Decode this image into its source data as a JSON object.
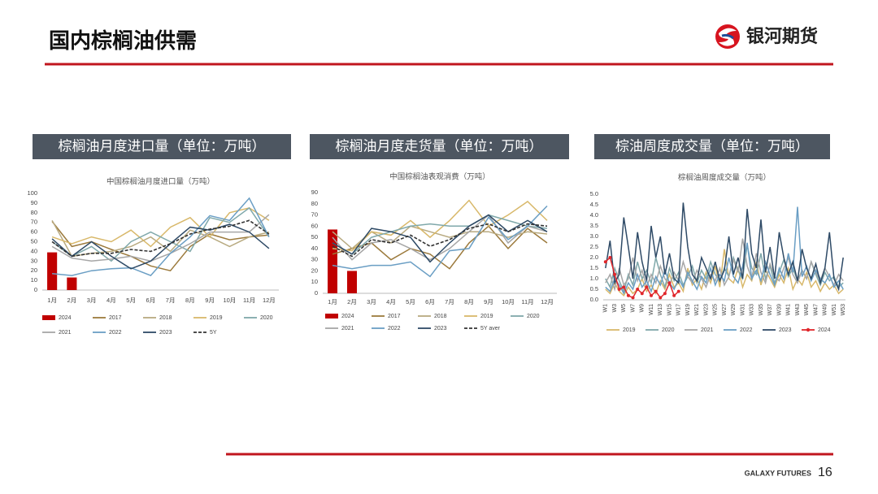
{
  "header": {
    "title": "国内棕榈油供需",
    "logo_text": "银河期货"
  },
  "sections": [
    "棕榈油月度进口量（单位：万吨）",
    "棕榈油月度走货量（单位：万吨）",
    "棕油周度成交量（单位：万吨）"
  ],
  "footer": {
    "brand": "GALAXY FUTURES",
    "page": 16
  },
  "chart_data": [
    {
      "type": "line",
      "title": "中国棕榈油月度进口量（万吨）",
      "categories": [
        "1月",
        "2月",
        "3月",
        "4月",
        "5月",
        "6月",
        "7月",
        "8月",
        "9月",
        "10月",
        "11月",
        "12月"
      ],
      "ylim": [
        0,
        100
      ],
      "yticks": [
        0,
        10,
        20,
        30,
        40,
        50,
        60,
        70,
        80,
        90,
        100
      ],
      "series": [
        {
          "name": "2024",
          "type": "bar",
          "color": "#c00000",
          "values": [
            39,
            13,
            null,
            null,
            null,
            null,
            null,
            null,
            null,
            null,
            null,
            null
          ]
        },
        {
          "name": "2017",
          "color": "#9c7a3c",
          "values": [
            71,
            45,
            50,
            42,
            35,
            25,
            20,
            45,
            58,
            52,
            55,
            57
          ]
        },
        {
          "name": "2018",
          "color": "#b8aa80",
          "values": [
            72,
            35,
            38,
            40,
            45,
            55,
            40,
            62,
            55,
            45,
            55,
            60
          ]
        },
        {
          "name": "2019",
          "color": "#d8b86a",
          "values": [
            55,
            48,
            55,
            50,
            62,
            45,
            65,
            75,
            55,
            80,
            85,
            72
          ]
        },
        {
          "name": "2020",
          "color": "#7fa8aa",
          "values": [
            50,
            35,
            45,
            30,
            50,
            60,
            50,
            40,
            75,
            70,
            85,
            55
          ]
        },
        {
          "name": "2021",
          "color": "#a6a6a6",
          "values": [
            45,
            33,
            30,
            32,
            35,
            30,
            38,
            48,
            60,
            60,
            60,
            78
          ]
        },
        {
          "name": "2022",
          "color": "#6a9ec4",
          "values": [
            17,
            15,
            20,
            22,
            23,
            15,
            38,
            55,
            77,
            72,
            95,
            55
          ]
        },
        {
          "name": "2023",
          "color": "#2e4a66",
          "values": [
            53,
            35,
            50,
            35,
            22,
            30,
            48,
            65,
            62,
            68,
            60,
            43
          ]
        },
        {
          "name": "5Y",
          "color": "#333333",
          "style": "dashed",
          "values": [
            50,
            35,
            38,
            38,
            42,
            40,
            48,
            58,
            63,
            66,
            72,
            58
          ]
        }
      ]
    },
    {
      "type": "line",
      "title": "中国棕榈油表观消费（万吨）",
      "categories": [
        "1月",
        "2月",
        "3月",
        "4月",
        "5月",
        "6月",
        "7月",
        "8月",
        "9月",
        "10月",
        "11月",
        "12月"
      ],
      "ylim": [
        0,
        90
      ],
      "yticks": [
        0,
        10,
        20,
        30,
        40,
        50,
        60,
        70,
        80,
        90
      ],
      "series": [
        {
          "name": "2024",
          "type": "bar",
          "color": "#c00000",
          "values": [
            57,
            20,
            null,
            null,
            null,
            null,
            null,
            null,
            null,
            null,
            null,
            null
          ]
        },
        {
          "name": "2017",
          "color": "#9c7a3c",
          "values": [
            35,
            40,
            45,
            30,
            40,
            35,
            22,
            45,
            60,
            40,
            58,
            45
          ]
        },
        {
          "name": "2018",
          "color": "#b8aa80",
          "values": [
            55,
            40,
            55,
            45,
            60,
            55,
            50,
            55,
            55,
            50,
            55,
            53
          ]
        },
        {
          "name": "2019",
          "color": "#d8b86a",
          "values": [
            40,
            38,
            55,
            52,
            65,
            50,
            65,
            83,
            60,
            70,
            82,
            65
          ]
        },
        {
          "name": "2020",
          "color": "#7fa8aa",
          "values": [
            45,
            35,
            50,
            55,
            60,
            62,
            60,
            60,
            70,
            65,
            60,
            58
          ]
        },
        {
          "name": "2021",
          "color": "#a6a6a6",
          "values": [
            50,
            30,
            45,
            48,
            40,
            30,
            40,
            55,
            70,
            45,
            60,
            55
          ]
        },
        {
          "name": "2022",
          "color": "#6a9ec4",
          "values": [
            25,
            22,
            25,
            25,
            28,
            15,
            38,
            40,
            68,
            48,
            60,
            78
          ]
        },
        {
          "name": "2023",
          "color": "#2e4a66",
          "values": [
            45,
            35,
            58,
            55,
            50,
            28,
            45,
            60,
            70,
            55,
            65,
            55
          ]
        },
        {
          "name": "5Y aver",
          "color": "#333333",
          "style": "dashed",
          "values": [
            42,
            33,
            48,
            45,
            52,
            42,
            48,
            58,
            62,
            55,
            62,
            60
          ]
        }
      ]
    },
    {
      "type": "line",
      "title": "棕榈油周度成交量（万吨）",
      "categories": [
        "W1",
        null,
        "W3",
        null,
        "W5",
        null,
        "W7",
        null,
        "W9",
        null,
        "W11",
        null,
        "W13",
        null,
        "W15",
        null,
        "W17",
        null,
        "W19",
        null,
        "W21",
        null,
        "W23",
        null,
        "W25",
        null,
        "W27",
        null,
        "W29",
        null,
        "W31",
        null,
        "W33",
        null,
        "W35",
        null,
        "W37",
        null,
        "W39",
        null,
        "W41",
        null,
        "W43",
        null,
        "W45",
        null,
        "W47",
        null,
        "W49",
        null,
        "W51",
        null,
        "W53"
      ],
      "ylim": [
        0,
        5
      ],
      "yticks": [
        {
          "value": 0,
          "label": "0.0"
        },
        0.5,
        {
          "value": 1,
          "label": "1.0"
        },
        1.5,
        {
          "value": 2,
          "label": "2.0"
        },
        2.5,
        {
          "value": 3,
          "label": "3.0"
        },
        3.5,
        {
          "value": 4,
          "label": "4.0"
        },
        4.5,
        {
          "value": 5,
          "label": "5.0"
        }
      ],
      "series": [
        {
          "name": "2019",
          "color": "#d8b86a",
          "values": [
            0.5,
            0.3,
            0.8,
            0.4,
            0.2,
            0.6,
            0.3,
            0.5,
            1.0,
            0.4,
            0.7,
            0.3,
            0.9,
            0.5,
            1.2,
            0.6,
            0.8,
            0.4,
            1.5,
            0.7,
            1.0,
            0.5,
            1.3,
            0.8,
            1.6,
            0.6,
            2.4,
            1.0,
            0.8,
            1.5,
            0.6,
            1.2,
            0.9,
            1.8,
            0.7,
            1.4,
            1.0,
            0.6,
            1.2,
            0.8,
            1.5,
            0.5,
            1.0,
            0.7,
            1.3,
            0.6,
            0.9,
            0.4,
            0.8,
            0.5,
            0.7,
            0.3,
            0.5
          ]
        },
        {
          "name": "2020",
          "color": "#7fa8aa",
          "values": [
            1.0,
            0.6,
            1.5,
            0.9,
            0.4,
            1.2,
            0.7,
            1.8,
            1.0,
            1.4,
            0.8,
            2.0,
            1.2,
            0.6,
            1.5,
            0.9,
            1.3,
            0.7,
            1.1,
            1.6,
            0.8,
            1.4,
            1.0,
            1.8,
            1.2,
            0.9,
            1.5,
            1.1,
            2.0,
            1.4,
            1.0,
            2.6,
            1.5,
            1.2,
            2.2,
            1.0,
            1.6,
            0.8,
            1.3,
            1.9,
            1.1,
            1.5,
            0.9,
            1.4,
            1.0,
            1.8,
            1.2,
            0.7,
            1.3,
            0.9,
            1.1,
            0.6,
            0.8
          ]
        },
        {
          "name": "2021",
          "color": "#a6a6a6",
          "values": [
            0.8,
            1.2,
            0.5,
            1.5,
            0.7,
            1.0,
            2.0,
            0.9,
            1.4,
            0.6,
            1.2,
            0.8,
            1.6,
            1.0,
            0.7,
            1.3,
            0.9,
            1.8,
            1.1,
            0.8,
            1.4,
            1.0,
            0.6,
            1.2,
            0.9,
            1.5,
            0.7,
            1.1,
            1.9,
            1.3,
            2.9,
            1.6,
            1.0,
            2.2,
            1.3,
            0.8,
            1.7,
            1.1,
            0.9,
            1.5,
            2.0,
            1.2,
            0.8,
            1.4,
            1.0,
            1.8,
            1.3,
            0.9,
            1.5,
            1.1,
            0.7,
            1.2,
            0.9
          ]
        },
        {
          "name": "2022",
          "color": "#6a9ec4",
          "values": [
            0.6,
            0.4,
            1.0,
            0.7,
            0.3,
            0.8,
            0.5,
            1.2,
            0.6,
            0.9,
            0.4,
            1.1,
            0.7,
            1.4,
            0.8,
            0.5,
            1.0,
            0.6,
            1.3,
            0.9,
            0.5,
            1.1,
            0.8,
            1.5,
            0.7,
            1.2,
            0.9,
            2.0,
            1.1,
            0.8,
            1.6,
            2.7,
            1.0,
            1.4,
            0.9,
            1.8,
            1.2,
            0.7,
            1.5,
            1.0,
            2.2,
            1.3,
            4.4,
            1.1,
            1.6,
            0.9,
            1.4,
            1.0,
            0.8,
            1.2,
            0.6,
            0.9,
            0.5
          ]
        },
        {
          "name": "2023",
          "color": "#2e4a66",
          "values": [
            1.5,
            2.8,
            0.8,
            1.2,
            3.9,
            2.5,
            1.0,
            3.2,
            1.8,
            0.9,
            3.5,
            2.0,
            3.0,
            1.2,
            2.2,
            1.0,
            0.8,
            4.6,
            2.5,
            1.2,
            0.9,
            2.0,
            1.5,
            1.0,
            1.8,
            0.9,
            1.4,
            3.0,
            1.2,
            2.0,
            1.0,
            4.3,
            2.2,
            1.5,
            3.8,
            1.3,
            2.5,
            1.0,
            3.2,
            2.0,
            1.2,
            1.8,
            0.9,
            2.4,
            1.5,
            1.0,
            1.7,
            0.8,
            1.5,
            3.2,
            1.0,
            0.5,
            2.0
          ]
        },
        {
          "name": "2024",
          "color": "#e0262b",
          "marker": true,
          "values": [
            1.8,
            2.0,
            1.2,
            0.5,
            0.6,
            0.2,
            0.1,
            0.5,
            0.3,
            0.6,
            0.2,
            0.4,
            0.1,
            0.3,
            0.8,
            0.2,
            0.4,
            null,
            null,
            null,
            null,
            null,
            null,
            null,
            null,
            null,
            null,
            null,
            null,
            null,
            null,
            null,
            null,
            null,
            null,
            null,
            null,
            null,
            null,
            null,
            null,
            null,
            null,
            null,
            null,
            null,
            null,
            null,
            null,
            null,
            null,
            null,
            null
          ]
        }
      ]
    }
  ]
}
